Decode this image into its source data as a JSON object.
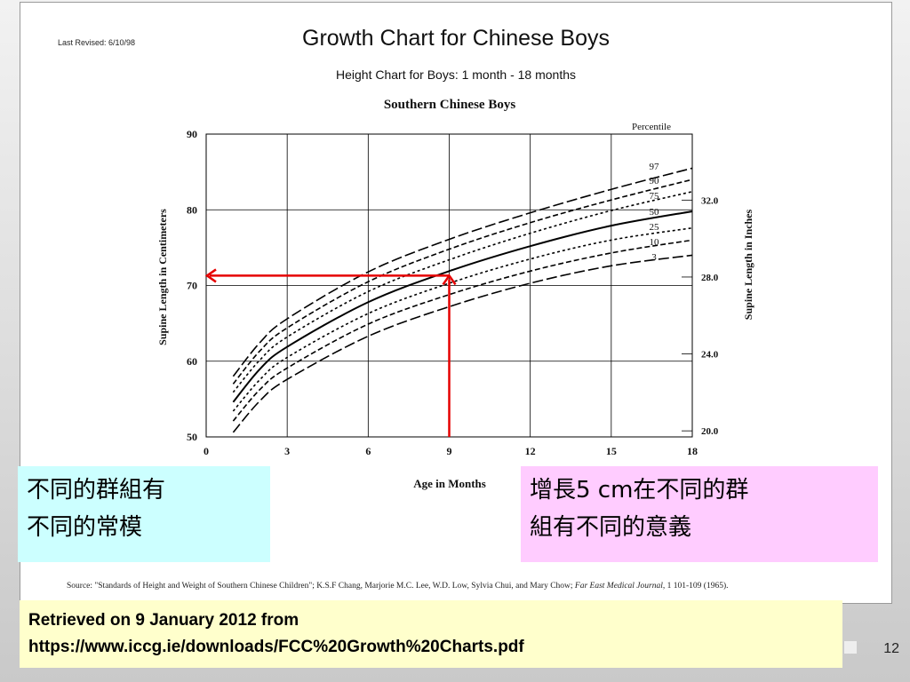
{
  "slide": {
    "page_number": "12",
    "retrieved_line1": "Retrieved on 9 January 2012 from",
    "retrieved_line2": "https://www.iccg.ie/downloads/FCC%20Growth%20Charts.pdf",
    "note_left_line1": "不同的群組有",
    "note_left_line2": "不同的常模",
    "note_right_line1": "增長5 cm在不同的群",
    "note_right_line2": "組有不同的意義"
  },
  "document": {
    "last_revised": "Last Revised: 6/10/98",
    "title": "Growth Chart for Chinese Boys",
    "subtitle": "Height Chart for Boys: 1 month - 18 months",
    "source_text": "Source: \"Standards of Height and Weight of Southern Chinese Children\"; K.S.F Chang, Marjorie M.C. Lee, W.D. Low, Sylvia Chui, and Mary Chow;",
    "source_journal": "Far East Medical Journal,",
    "source_tail": "1 101-109 (1965)."
  },
  "chart_data": {
    "type": "line",
    "title": "Southern Chinese Boys",
    "xlabel": "Age in Months",
    "ylabel": "Supine Length in Centimeters",
    "y2label": "Supine Length in Inches",
    "legend_title": "Percentile",
    "xlim": [
      0,
      18
    ],
    "ylim": [
      50,
      90
    ],
    "x_ticks": [
      0,
      3,
      6,
      9,
      12,
      15,
      18
    ],
    "y_ticks": [
      50,
      60,
      70,
      80,
      90
    ],
    "y2_ticks": [
      "20.0",
      "24.0",
      "28.0",
      "32.0"
    ],
    "y2_ticks_cm": [
      50.8,
      60.96,
      71.12,
      81.28
    ],
    "grid": true,
    "series": [
      {
        "name": "97",
        "x": [
          1,
          2,
          3,
          6,
          9,
          12,
          15,
          18
        ],
        "values": [
          58.0,
          62.5,
          65.6,
          71.8,
          76.1,
          79.6,
          82.7,
          85.5
        ]
      },
      {
        "name": "90",
        "x": [
          1,
          2,
          3,
          6,
          9,
          12,
          15,
          18
        ],
        "values": [
          57.0,
          61.4,
          64.4,
          70.5,
          74.8,
          78.3,
          81.3,
          84.0
        ]
      },
      {
        "name": "75",
        "x": [
          1,
          2,
          3,
          6,
          9,
          12,
          15,
          18
        ],
        "values": [
          55.9,
          60.2,
          63.2,
          69.2,
          73.4,
          76.9,
          79.9,
          82.4
        ]
      },
      {
        "name": "50",
        "x": [
          1,
          2,
          3,
          6,
          9,
          12,
          15,
          18
        ],
        "values": [
          54.6,
          59.0,
          61.9,
          67.8,
          71.9,
          75.2,
          77.9,
          79.8
        ]
      },
      {
        "name": "25",
        "x": [
          1,
          2,
          3,
          6,
          9,
          12,
          15,
          18
        ],
        "values": [
          53.4,
          57.6,
          60.5,
          66.3,
          70.3,
          73.5,
          76.0,
          77.6
        ]
      },
      {
        "name": "10",
        "x": [
          1,
          2,
          3,
          6,
          9,
          12,
          15,
          18
        ],
        "values": [
          52.1,
          56.3,
          59.1,
          64.9,
          68.8,
          71.9,
          74.3,
          76.0
        ]
      },
      {
        "name": "3",
        "x": [
          1,
          2,
          3,
          6,
          9,
          12,
          15,
          18
        ],
        "values": [
          50.6,
          54.8,
          57.6,
          63.3,
          67.2,
          70.3,
          72.6,
          74.0
        ]
      }
    ],
    "annotation": {
      "x": 9,
      "y": 71.3
    }
  }
}
